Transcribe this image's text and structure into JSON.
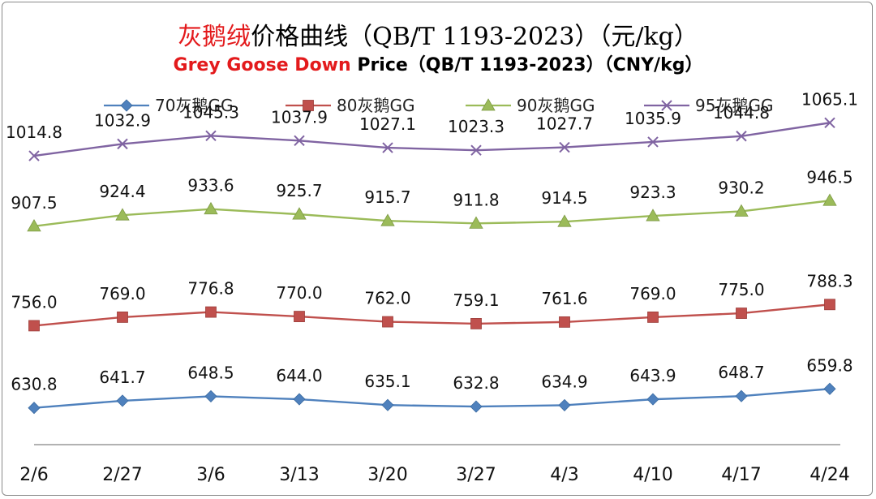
{
  "title": {
    "zh_highlight": "灰鹅绒",
    "zh_rest": "价格曲线（QB/T 1193-2023）（元/kg）",
    "en_highlight": "Grey Goose Down",
    "en_rest": " Price（QB/T 1193-2023）（CNY/kg）"
  },
  "chart_data": {
    "type": "line",
    "title": "灰鹅绒价格曲线（QB/T 1193-2023）（元/kg）",
    "subtitle": "Grey Goose Down Price（QB/T 1193-2023）（CNY/kg）",
    "xlabel": "",
    "ylabel": "",
    "categories": [
      "2/6",
      "2/27",
      "3/6",
      "3/13",
      "3/20",
      "3/27",
      "4/3",
      "4/10",
      "4/17",
      "4/24"
    ],
    "ylim": [
      560,
      1110
    ],
    "grid": false,
    "legend_position": "top",
    "series": [
      {
        "name": "70灰鹅GG",
        "marker": "diamond",
        "color": "#4f81bd",
        "values": [
          630.8,
          641.7,
          648.5,
          644.0,
          635.1,
          632.8,
          634.9,
          643.9,
          648.7,
          659.8
        ],
        "labels": [
          "630.8",
          "641.7",
          "648.5",
          "644.0",
          "635.1",
          "632.8",
          "634.9",
          "643.9",
          "648.7",
          "659.8"
        ]
      },
      {
        "name": "80灰鹅GG",
        "marker": "square",
        "color": "#c0504d",
        "values": [
          756.0,
          769.0,
          776.8,
          770.0,
          762.0,
          759.1,
          761.6,
          769.0,
          775.0,
          788.3
        ],
        "labels": [
          "756.0",
          "769.0",
          "776.8",
          "770.0",
          "762.0",
          "759.1",
          "761.6",
          "769.0",
          "775.0",
          "788.3"
        ]
      },
      {
        "name": "90灰鹅GG",
        "marker": "triangle",
        "color": "#9bbb59",
        "values": [
          907.5,
          924.4,
          933.6,
          925.7,
          915.7,
          911.8,
          914.5,
          923.3,
          930.2,
          946.5
        ],
        "labels": [
          "907.5",
          "924.4",
          "933.6",
          "925.7",
          "915.7",
          "911.8",
          "914.5",
          "923.3",
          "930.2",
          "946.5"
        ]
      },
      {
        "name": "95灰鹅GG",
        "marker": "x",
        "color": "#8064a2",
        "values": [
          1014.8,
          1032.9,
          1045.3,
          1037.9,
          1027.1,
          1023.3,
          1027.7,
          1035.9,
          1044.8,
          1065.1
        ],
        "labels": [
          "1014.8",
          "1032.9",
          "1045.3",
          "1037.9",
          "1027.1",
          "1023.3",
          "1027.7",
          "1035.9",
          "1044.8",
          "1065.1"
        ]
      }
    ]
  }
}
